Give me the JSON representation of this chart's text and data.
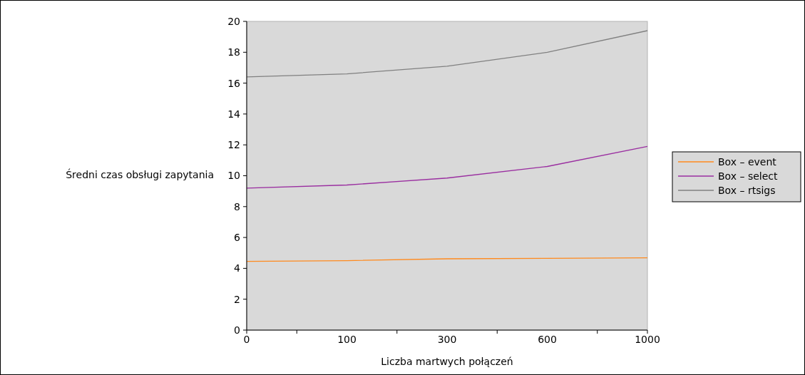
{
  "chart_data": {
    "type": "line",
    "xlabel": "Liczba martwych połączeń",
    "ylabel": "Średni czas obsługi zapytania",
    "categories": [
      "0",
      "100",
      "300",
      "600",
      "1000"
    ],
    "ylim": [
      0,
      20
    ],
    "yticks": [
      0,
      2,
      4,
      6,
      8,
      10,
      12,
      14,
      16,
      18,
      20
    ],
    "grid": false,
    "legend": "right",
    "marker": "none",
    "series": [
      {
        "name": "Box – event",
        "color": "#ff8a1e",
        "values": [
          4.45,
          4.5,
          4.62,
          4.65,
          4.68
        ]
      },
      {
        "name": "Box – select",
        "color": "#9a2ea0",
        "values": [
          9.2,
          9.4,
          9.85,
          10.6,
          11.9
        ]
      },
      {
        "name": "Box – rtsigs",
        "color": "#808080",
        "values": [
          16.4,
          16.6,
          17.1,
          18.0,
          19.4
        ]
      }
    ]
  }
}
